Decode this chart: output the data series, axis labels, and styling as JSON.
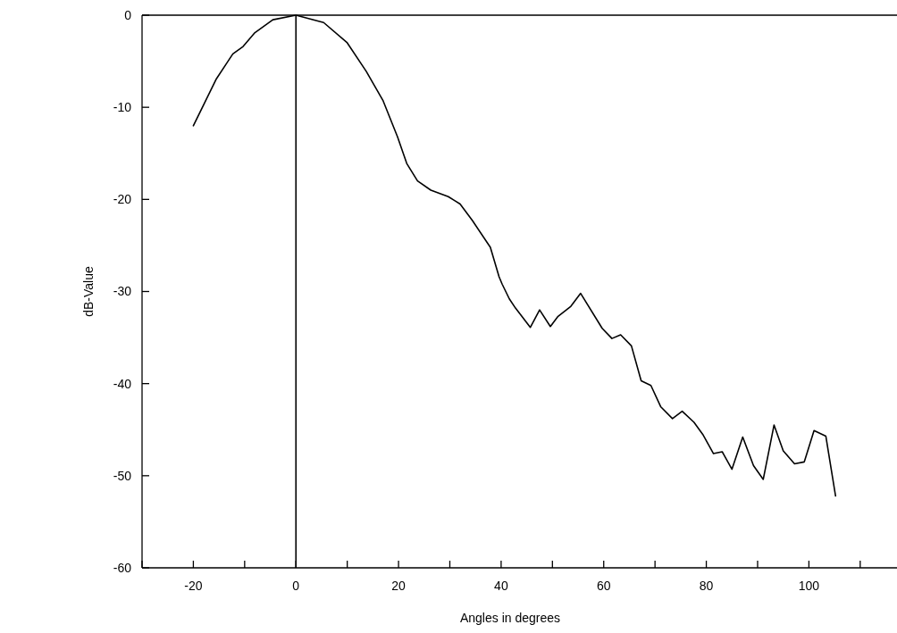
{
  "chart_data": {
    "type": "line",
    "xlabel": "Angles in degrees",
    "ylabel": "dB-Value",
    "xlim": [
      -30,
      117
    ],
    "ylim": [
      -60,
      0
    ],
    "xticks": [
      {
        "value": -30,
        "label": null
      },
      -20,
      {
        "value": -10,
        "label": null
      },
      0,
      {
        "value": 10,
        "label": null
      },
      20,
      {
        "value": 30,
        "label": null
      },
      40,
      {
        "value": 50,
        "label": null
      },
      60,
      {
        "value": 70,
        "label": null
      },
      80,
      {
        "value": 90,
        "label": null
      },
      100,
      {
        "value": 110,
        "label": null
      }
    ],
    "yticks": [
      0,
      -10,
      -20,
      -30,
      -40,
      -50,
      -60
    ],
    "ref_lines": [
      {
        "axis": "x",
        "value": 0,
        "label": null
      }
    ],
    "series": [
      {
        "color": "#000000",
        "x": [
          -20,
          -15.5,
          -12.3,
          -10.3,
          -8,
          -4.5,
          0,
          5.4,
          10,
          13.7,
          17,
          19.8,
          21.6,
          23.7,
          26.3,
          29.7,
          32,
          34.4,
          37.9,
          39.6,
          40.2,
          41.6,
          42.8,
          45.7,
          47.5,
          49.6,
          51.1,
          53.6,
          55.5,
          59.7,
          61.6,
          63.3,
          65.4,
          67.3,
          69.2,
          71.1,
          73.4,
          75.3,
          77.6,
          79.3,
          81.4,
          83.1,
          85,
          87.1,
          89.2,
          91.1,
          93.2,
          95,
          97.2,
          99.1,
          101,
          103.3,
          105.2
        ],
        "values": [
          -12,
          -6.9,
          -4.2,
          -3.4,
          -1.9,
          -0.5,
          0,
          -0.8,
          -3,
          -6.1,
          -9.3,
          -13.2,
          -16.1,
          -18,
          -19,
          -19.7,
          -20.5,
          -22.3,
          -25.2,
          -28.4,
          -29.2,
          -30.8,
          -31.8,
          -33.9,
          -32,
          -33.8,
          -32.7,
          -31.6,
          -30.2,
          -34,
          -35.1,
          -34.7,
          -35.9,
          -39.7,
          -40.2,
          -42.5,
          -43.8,
          -43,
          -44.2,
          -45.5,
          -47.6,
          -47.4,
          -49.3,
          -45.8,
          -48.9,
          -50.4,
          -44.5,
          -47.3,
          -48.7,
          -48.5,
          -45.1,
          -45.7,
          -52.2
        ]
      }
    ],
    "grid": false,
    "marker": "none",
    "line_style": "solid"
  }
}
